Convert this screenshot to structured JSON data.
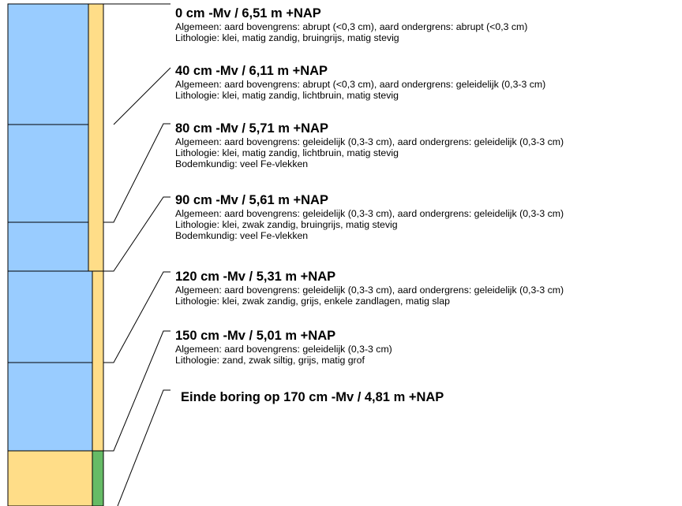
{
  "colors": {
    "primary_column": "#99ccff",
    "sand": "#ffdd88",
    "green": "#66bb66",
    "line": "#000000"
  },
  "layers": [
    {
      "depth": "0 cm -Mv / 6,51 m +NAP",
      "algemeen": "Algemeen: aard bovengrens: abrupt (<0,3 cm), aard ondergrens: abrupt (<0,3 cm)",
      "lithologie": "Lithologie: klei, matig zandig, bruingrijs, matig stevig",
      "bodemkundig": ""
    },
    {
      "depth": "40 cm -Mv / 6,11 m +NAP",
      "algemeen": "Algemeen: aard bovengrens: abrupt (<0,3 cm), aard ondergrens: geleidelijk (0,3-3 cm)",
      "lithologie": "Lithologie: klei, matig zandig, lichtbruin, matig stevig",
      "bodemkundig": ""
    },
    {
      "depth": "80 cm -Mv / 5,71 m +NAP",
      "algemeen": "Algemeen: aard bovengrens: geleidelijk (0,3-3 cm), aard ondergrens: geleidelijk (0,3-3 cm)",
      "lithologie": "Lithologie: klei, matig zandig, lichtbruin, matig stevig",
      "bodemkundig": "Bodemkundig: veel Fe-vlekken"
    },
    {
      "depth": "90 cm -Mv / 5,61 m +NAP",
      "algemeen": "Algemeen: aard bovengrens: geleidelijk (0,3-3 cm), aard ondergrens: geleidelijk (0,3-3 cm)",
      "lithologie": "Lithologie: klei, zwak zandig, bruingrijs, matig stevig",
      "bodemkundig": "Bodemkundig: veel Fe-vlekken"
    },
    {
      "depth": "120 cm -Mv / 5,31 m +NAP",
      "algemeen": "Algemeen: aard bovengrens: geleidelijk (0,3-3 cm), aard ondergrens: geleidelijk (0,3-3 cm)",
      "lithologie": "Lithologie: klei, zwak zandig, grijs, enkele zandlagen, matig slap",
      "bodemkundig": ""
    },
    {
      "depth": "150 cm -Mv / 5,01 m +NAP",
      "algemeen": "Algemeen: aard bovengrens: geleidelijk (0,3-3 cm)",
      "lithologie": "Lithologie: zand, zwak siltig, grijs, matig grof",
      "bodemkundig": ""
    }
  ],
  "end": {
    "label": "Einde boring op 170 cm -Mv / 4,81 m +NAP"
  }
}
